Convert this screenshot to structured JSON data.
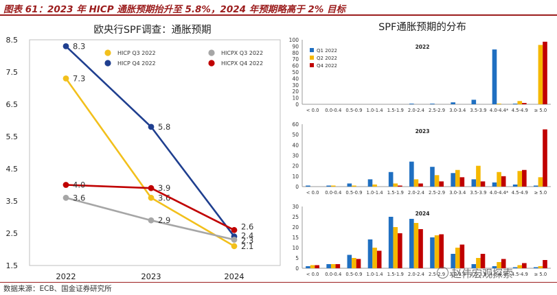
{
  "figure_title": "图表 61：2023 年 HICP 通胀预期抬升至 5.8%，2024 年预期略高于 2% 目标",
  "source_note": "数据来源：ECB、国金证券研究所",
  "watermark": "赵伟宏观探索",
  "colors": {
    "title_red": "#9b1c1c",
    "hicp_q3": "#f2c01c",
    "hicp_q4": "#1f3f8f",
    "hicpx_q3": "#a6a6a6",
    "hicpx_q4": "#c00000",
    "q1": "#1f6fc1",
    "q2": "#f5b800",
    "q4bar": "#c00000"
  },
  "chart_data": [
    {
      "type": "line",
      "title": "欧央行SPF调查：通胀预期",
      "categories": [
        "2022",
        "2023",
        "2024"
      ],
      "ylim": [
        1.5,
        8.5
      ],
      "yticks": [
        "1.5",
        "2.5",
        "3.5",
        "4.5",
        "5.5",
        "6.5",
        "7.5",
        "8.5"
      ],
      "series": [
        {
          "name": "HICP Q3 2022",
          "color": "#f2c01c",
          "values": [
            7.3,
            3.6,
            2.1
          ],
          "labels": [
            "7.3",
            "3.6",
            "2.1"
          ]
        },
        {
          "name": "HICP Q4 2022",
          "color": "#1f3f8f",
          "values": [
            8.3,
            5.8,
            2.4
          ],
          "labels": [
            "8.3",
            "5.8",
            "2.4"
          ]
        },
        {
          "name": "HICPX Q3 2022",
          "color": "#a6a6a6",
          "values": [
            3.6,
            2.9,
            2.3
          ],
          "labels": [
            "3.6",
            "2.9",
            "2.3"
          ]
        },
        {
          "name": "HICPX Q4 2022",
          "color": "#c00000",
          "values": [
            4.0,
            3.9,
            2.6
          ],
          "labels": [
            "4.0",
            "3.9",
            "2.6"
          ]
        }
      ]
    },
    {
      "type": "bar",
      "title": "SPF通胀预期的分布",
      "categories": [
        "< 0.0",
        "0.0-0.4",
        "0.5-0.9",
        "1.0-1.4",
        "1.5-1.9",
        "2.0-2.4",
        "2.5-2.9",
        "3.0-3.4",
        "3.5-3.9",
        "4.0-4.4*",
        "4.5-4.9",
        "≥ 5.0"
      ],
      "legend": [
        "Q1 2022",
        "Q2 2022",
        "Q4 2022"
      ],
      "panels": [
        {
          "name": "2022",
          "ylim": [
            0,
            100
          ],
          "yticks": [
            "0",
            "10",
            "20",
            "30",
            "40",
            "50",
            "60",
            "70",
            "80",
            "90",
            "100"
          ],
          "series": [
            {
              "name": "Q1 2022",
              "values": [
                0,
                0,
                0,
                0,
                0,
                1,
                1,
                3,
                7,
                85,
                1,
                0
              ]
            },
            {
              "name": "Q2 2022",
              "values": [
                0,
                0,
                0,
                0,
                0,
                0,
                0,
                0,
                0,
                1,
                5,
                92
              ]
            },
            {
              "name": "Q4 2022",
              "values": [
                0,
                0,
                0,
                0,
                0,
                0,
                0,
                0,
                0,
                0,
                2,
                97
              ]
            }
          ]
        },
        {
          "name": "2023",
          "ylim": [
            0,
            60
          ],
          "yticks": [
            "0",
            "10",
            "20",
            "30",
            "40",
            "50",
            "60"
          ],
          "series": [
            {
              "name": "Q1 2022",
              "values": [
                1,
                1,
                3,
                7,
                14,
                24,
                19,
                13,
                7,
                4,
                2,
                1
              ]
            },
            {
              "name": "Q2 2022",
              "values": [
                0,
                1,
                1,
                2,
                3,
                7,
                11,
                16,
                20,
                14,
                15,
                9
              ]
            },
            {
              "name": "Q4 2022",
              "values": [
                0,
                0,
                0,
                0,
                1,
                3,
                5,
                9,
                5,
                10,
                16,
                55
              ]
            }
          ]
        },
        {
          "name": "2024",
          "ylim": [
            0,
            30
          ],
          "yticks": [
            "0",
            "5",
            "10",
            "15",
            "20",
            "25",
            "30"
          ],
          "series": [
            {
              "name": "Q1 2022",
              "values": [
                1,
                2,
                6.5,
                14,
                25,
                24,
                15,
                7,
                2,
                1,
                0.5,
                0.5
              ]
            },
            {
              "name": "Q2 2022",
              "values": [
                1.5,
                2,
                5,
                10,
                20,
                22,
                16,
                10,
                5,
                3,
                1.5,
                1
              ]
            },
            {
              "name": "Q4 2022",
              "values": [
                1.5,
                2,
                4.5,
                8.5,
                17,
                19,
                16.5,
                11.5,
                7,
                4.5,
                2.5,
                4
              ]
            }
          ]
        }
      ]
    }
  ]
}
